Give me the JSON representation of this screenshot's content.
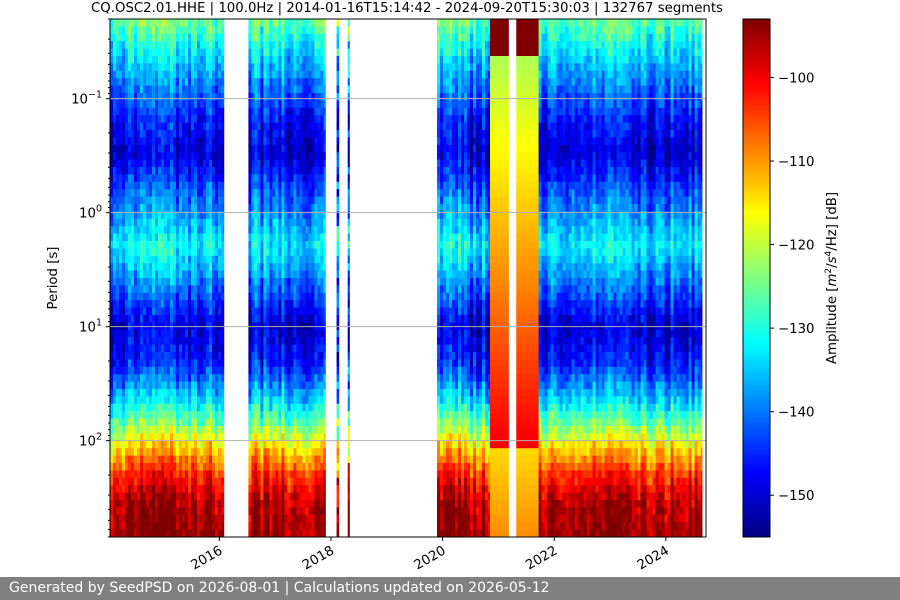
{
  "chart_data": {
    "type": "heatmap",
    "title": "CQ.OSC2.01.HHE | 100.0Hz | 2014-01-16T15:14:42 - 2024-09-20T15:30:03 | 132767 segments",
    "xlabel": "",
    "ylabel": "Period [s]",
    "x_ticks": [
      "2016",
      "2018",
      "2020",
      "2022",
      "2024"
    ],
    "x_tick_years": [
      2016,
      2018,
      2020,
      2022,
      2024
    ],
    "xlim": [
      2014.04,
      2024.72
    ],
    "y_scale": "log",
    "y_inverted": true,
    "ylim": [
      0.02,
      700
    ],
    "y_ticks": [
      {
        "value": 0.1,
        "base": "10",
        "exp": "−1"
      },
      {
        "value": 1,
        "base": "10",
        "exp": "0"
      },
      {
        "value": 10,
        "base": "10",
        "exp": "1"
      },
      {
        "value": 100,
        "base": "10",
        "exp": "2"
      }
    ],
    "grid": "horizontal",
    "colorbar": {
      "label": "Amplitude [m²/s⁴/Hz] [dB]",
      "label_parts": [
        "Amplitude [",
        "m",
        "2",
        "/",
        "s",
        "4",
        "/Hz] [dB]"
      ],
      "range": [
        -155,
        -93
      ],
      "ticks": [
        "−100",
        "−110",
        "−120",
        "−130",
        "−140",
        "−150"
      ],
      "tick_values": [
        -100,
        -110,
        -120,
        -130,
        -140,
        -150
      ],
      "colormap": "jet"
    },
    "data_segments": [
      {
        "start": 2014.04,
        "end": 2016.08,
        "kind": "normal"
      },
      {
        "start": 2016.52,
        "end": 2017.9,
        "kind": "normal"
      },
      {
        "start": 2018.1,
        "end": 2018.14,
        "kind": "sparse"
      },
      {
        "start": 2018.3,
        "end": 2018.33,
        "kind": "sparse"
      },
      {
        "start": 2019.9,
        "end": 2020.85,
        "kind": "normal"
      },
      {
        "start": 2020.85,
        "end": 2021.18,
        "kind": "high"
      },
      {
        "start": 2021.32,
        "end": 2021.58,
        "kind": "high"
      },
      {
        "start": 2021.58,
        "end": 2021.72,
        "kind": "high"
      },
      {
        "start": 2021.72,
        "end": 2024.65,
        "kind": "normal"
      }
    ],
    "period_profile": [
      {
        "period": 0.02,
        "db": -125
      },
      {
        "period": 0.05,
        "db": -136
      },
      {
        "period": 0.15,
        "db": -146
      },
      {
        "period": 0.3,
        "db": -150
      },
      {
        "period": 0.6,
        "db": -143
      },
      {
        "period": 2,
        "db": -132
      },
      {
        "period": 5,
        "db": -142
      },
      {
        "period": 10,
        "db": -150
      },
      {
        "period": 20,
        "db": -146
      },
      {
        "period": 40,
        "db": -136
      },
      {
        "period": 70,
        "db": -125
      },
      {
        "period": 120,
        "db": -113
      },
      {
        "period": 200,
        "db": -103
      },
      {
        "period": 350,
        "db": -96
      },
      {
        "period": 700,
        "db": -94
      }
    ]
  },
  "footer": {
    "text": "Generated by SeedPSD on 2026-08-01 | Calculations updated on 2026-05-12"
  }
}
